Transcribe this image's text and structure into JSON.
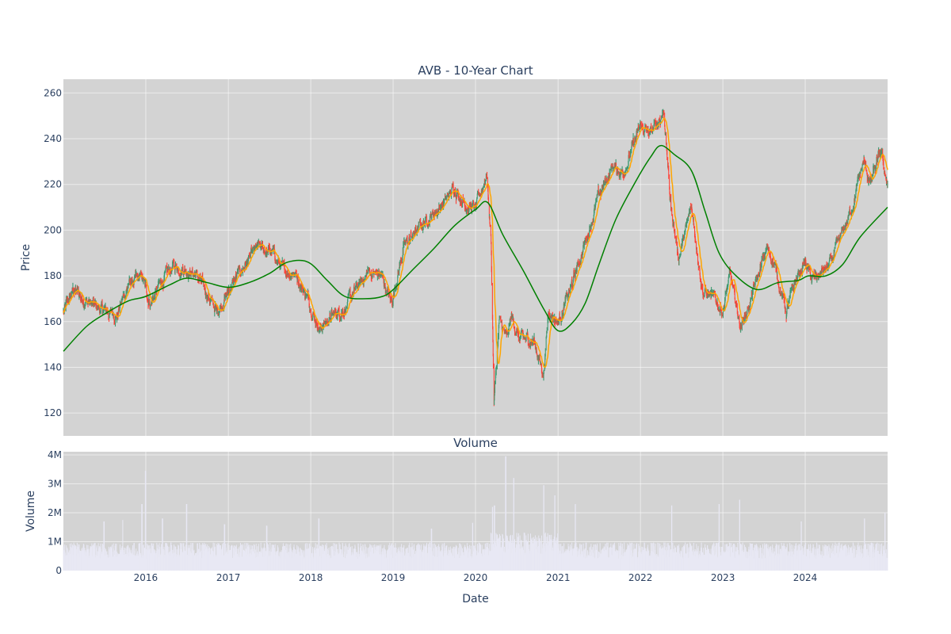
{
  "chart_data": [
    {
      "type": "candlestick",
      "title": "AVB - 10-Year Chart",
      "ylabel": "Price",
      "xlim": [
        "2015-01-01",
        "2024-12-31"
      ],
      "ylim": [
        110,
        266
      ],
      "y_ticks": [
        120,
        140,
        160,
        180,
        200,
        220,
        240,
        260
      ],
      "x_ticks": [
        "2016",
        "2017",
        "2018",
        "2019",
        "2020",
        "2021",
        "2022",
        "2023",
        "2024"
      ],
      "grid": true,
      "background": "#d3d3d3",
      "colors": {
        "up": "#3d9970",
        "down": "#ff4136",
        "short_ma": "#ffa500",
        "long_ma": "#008000"
      },
      "price_trend": [
        [
          "2015-01-02",
          164
        ],
        [
          "2015-02-15",
          174
        ],
        [
          "2015-04-01",
          170
        ],
        [
          "2015-06-15",
          165
        ],
        [
          "2015-08-25",
          163
        ],
        [
          "2015-10-15",
          176
        ],
        [
          "2015-12-15",
          179
        ],
        [
          "2016-01-20",
          168
        ],
        [
          "2016-03-15",
          178
        ],
        [
          "2016-05-01",
          184
        ],
        [
          "2016-07-01",
          183
        ],
        [
          "2016-08-15",
          180
        ],
        [
          "2016-10-10",
          170
        ],
        [
          "2016-11-10",
          164
        ],
        [
          "2017-01-15",
          176
        ],
        [
          "2017-03-10",
          184
        ],
        [
          "2017-05-10",
          192
        ],
        [
          "2017-07-15",
          190
        ],
        [
          "2017-09-01",
          182
        ],
        [
          "2017-10-20",
          182
        ],
        [
          "2017-12-20",
          170
        ],
        [
          "2018-02-08",
          157
        ],
        [
          "2018-04-01",
          162
        ],
        [
          "2018-06-01",
          166
        ],
        [
          "2018-07-15",
          173
        ],
        [
          "2018-09-15",
          182
        ],
        [
          "2018-11-10",
          180
        ],
        [
          "2018-12-24",
          168
        ],
        [
          "2019-02-15",
          192
        ],
        [
          "2019-04-15",
          200
        ],
        [
          "2019-06-15",
          206
        ],
        [
          "2019-08-15",
          212
        ],
        [
          "2019-10-01",
          219
        ],
        [
          "2019-11-15",
          212
        ],
        [
          "2020-01-01",
          209
        ],
        [
          "2020-02-20",
          225
        ],
        [
          "2020-03-10",
          195
        ],
        [
          "2020-03-23",
          125
        ],
        [
          "2020-04-15",
          160
        ],
        [
          "2020-05-20",
          152
        ],
        [
          "2020-06-08",
          162
        ],
        [
          "2020-07-15",
          152
        ],
        [
          "2020-09-15",
          152
        ],
        [
          "2020-10-28",
          137
        ],
        [
          "2020-11-20",
          165
        ],
        [
          "2021-01-01",
          160
        ],
        [
          "2021-03-01",
          175
        ],
        [
          "2021-05-01",
          195
        ],
        [
          "2021-07-01",
          215
        ],
        [
          "2021-09-01",
          228
        ],
        [
          "2021-10-15",
          225
        ],
        [
          "2021-12-31",
          245
        ],
        [
          "2022-02-15",
          242
        ],
        [
          "2022-04-15",
          252
        ],
        [
          "2022-05-15",
          210
        ],
        [
          "2022-06-20",
          188
        ],
        [
          "2022-08-15",
          210
        ],
        [
          "2022-10-05",
          173
        ],
        [
          "2022-11-01",
          172
        ],
        [
          "2022-12-31",
          165
        ],
        [
          "2023-02-01",
          180
        ],
        [
          "2023-03-20",
          158
        ],
        [
          "2023-05-01",
          168
        ],
        [
          "2023-07-15",
          192
        ],
        [
          "2023-08-15",
          186
        ],
        [
          "2023-10-10",
          164
        ],
        [
          "2023-11-20",
          178
        ],
        [
          "2023-12-31",
          186
        ],
        [
          "2024-02-01",
          178
        ],
        [
          "2024-04-15",
          184
        ],
        [
          "2024-06-01",
          195
        ],
        [
          "2024-07-20",
          208
        ],
        [
          "2024-09-15",
          230
        ],
        [
          "2024-10-15",
          220
        ],
        [
          "2024-12-01",
          234
        ],
        [
          "2024-12-31",
          220
        ]
      ],
      "moving_average_long": [
        [
          "2015-01-01",
          147
        ],
        [
          "2015-04-15",
          158
        ],
        [
          "2015-07-15",
          164
        ],
        [
          "2015-10-15",
          169
        ],
        [
          "2016-01-01",
          171
        ],
        [
          "2016-04-15",
          176
        ],
        [
          "2016-07-01",
          179
        ],
        [
          "2016-10-01",
          177
        ],
        [
          "2017-01-01",
          175
        ],
        [
          "2017-04-01",
          177
        ],
        [
          "2017-07-01",
          181
        ],
        [
          "2017-09-20",
          186
        ],
        [
          "2017-12-20",
          186
        ],
        [
          "2018-03-15",
          178
        ],
        [
          "2018-06-01",
          171
        ],
        [
          "2018-09-01",
          170
        ],
        [
          "2018-11-15",
          171
        ],
        [
          "2019-01-01",
          174
        ],
        [
          "2019-04-01",
          183
        ],
        [
          "2019-07-01",
          192
        ],
        [
          "2019-10-01",
          202
        ],
        [
          "2020-01-01",
          209
        ],
        [
          "2020-02-25",
          212
        ],
        [
          "2020-05-01",
          198
        ],
        [
          "2020-08-01",
          182
        ],
        [
          "2020-11-01",
          165
        ],
        [
          "2021-01-01",
          156
        ],
        [
          "2021-03-01",
          159
        ],
        [
          "2021-05-01",
          168
        ],
        [
          "2021-07-01",
          185
        ],
        [
          "2021-09-15",
          205
        ],
        [
          "2021-12-15",
          222
        ],
        [
          "2022-02-15",
          232
        ],
        [
          "2022-04-01",
          237
        ],
        [
          "2022-06-01",
          233
        ],
        [
          "2022-08-15",
          226
        ],
        [
          "2022-10-15",
          208
        ],
        [
          "2022-12-15",
          190
        ],
        [
          "2023-03-01",
          180
        ],
        [
          "2023-06-01",
          174
        ],
        [
          "2023-09-01",
          177
        ],
        [
          "2023-12-01",
          178
        ],
        [
          "2024-01-15",
          180
        ],
        [
          "2024-04-01",
          180
        ],
        [
          "2024-06-15",
          185
        ],
        [
          "2024-09-01",
          197
        ],
        [
          "2024-12-31",
          210
        ]
      ]
    },
    {
      "type": "bar",
      "title": "Volume",
      "ylabel": "Volume",
      "xlabel": "Date",
      "ylim": [
        0,
        4000000
      ],
      "y_ticks": [
        0,
        1000000,
        2000000,
        3000000,
        4000000
      ],
      "y_tick_labels": [
        "0",
        "1M",
        "2M",
        "3M",
        "4M"
      ],
      "x_ticks": [
        "2016",
        "2017",
        "2018",
        "2019",
        "2020",
        "2021",
        "2022",
        "2023",
        "2024"
      ],
      "grid": true,
      "background": "#d3d3d3",
      "bar_color": "#e8e8f4",
      "base_volume": 750000,
      "peaks": [
        [
          "2015-06-30",
          1700000
        ],
        [
          "2015-09-20",
          1750000
        ],
        [
          "2015-12-15",
          2300000
        ],
        [
          "2015-12-31",
          3450000
        ],
        [
          "2016-03-15",
          1800000
        ],
        [
          "2016-06-30",
          2300000
        ],
        [
          "2016-12-15",
          1600000
        ],
        [
          "2017-06-20",
          1550000
        ],
        [
          "2018-02-06",
          1800000
        ],
        [
          "2019-06-20",
          1450000
        ],
        [
          "2019-12-20",
          1650000
        ],
        [
          "2020-03-16",
          2200000
        ],
        [
          "2020-03-25",
          2250000
        ],
        [
          "2020-05-14",
          3950000
        ],
        [
          "2020-06-19",
          3200000
        ],
        [
          "2020-10-30",
          2950000
        ],
        [
          "2020-12-18",
          2600000
        ],
        [
          "2021-03-19",
          2300000
        ],
        [
          "2022-05-20",
          2250000
        ],
        [
          "2022-12-16",
          2300000
        ],
        [
          "2023-03-17",
          2450000
        ],
        [
          "2023-12-15",
          1700000
        ],
        [
          "2024-09-20",
          1800000
        ],
        [
          "2024-12-20",
          2000000
        ]
      ]
    }
  ]
}
